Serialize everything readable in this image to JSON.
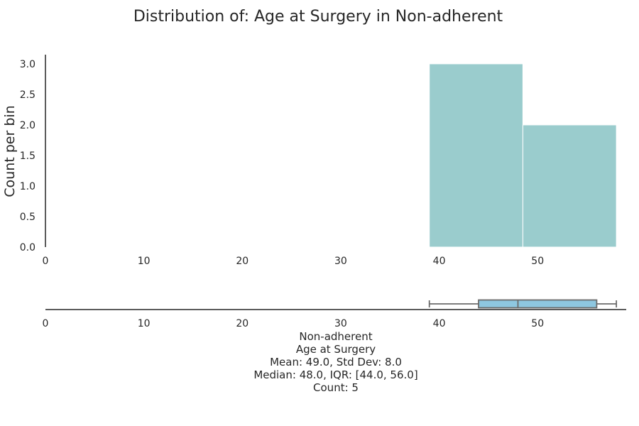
{
  "chart_data": {
    "type": "bar",
    "title": "Distribution of: Age at Surgery in Non-adherent",
    "ylabel": "Count per bin",
    "xlabel": "",
    "xlim": [
      0,
      59
    ],
    "ylim": [
      0,
      3.15
    ],
    "x_ticks": [
      "0",
      "10",
      "20",
      "30",
      "40",
      "50"
    ],
    "y_ticks": [
      "0.0",
      "0.5",
      "1.0",
      "1.5",
      "2.0",
      "2.5",
      "3.0"
    ],
    "grid": false,
    "histogram": {
      "bins": [
        {
          "start": 39.0,
          "end": 48.5,
          "count": 3
        },
        {
          "start": 48.5,
          "end": 58.0,
          "count": 2
        }
      ],
      "color": "#9acccd"
    },
    "boxplot": {
      "min": 39.0,
      "q1": 44.0,
      "median": 48.0,
      "q3": 56.0,
      "max": 58.0,
      "color": "#8ec7e0"
    },
    "stats_text": [
      "Non-adherent",
      "Age at Surgery",
      "Mean: 49.0, Std Dev: 8.0",
      "Median: 48.0, IQR: [44.0, 56.0]",
      "Count: 5"
    ]
  }
}
